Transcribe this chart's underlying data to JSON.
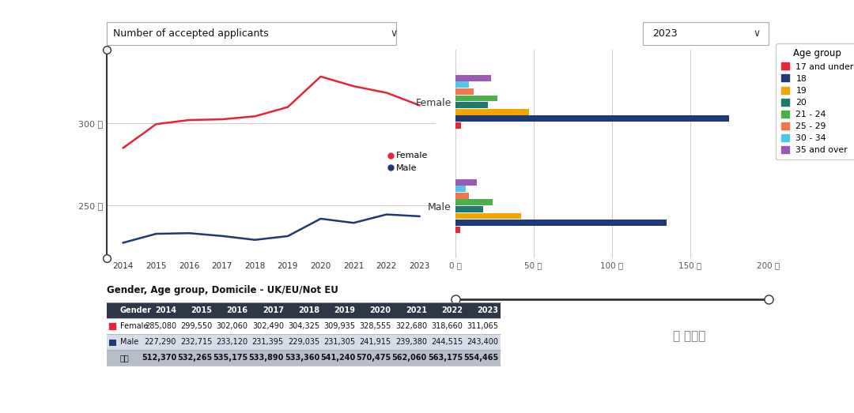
{
  "years": [
    2014,
    2015,
    2016,
    2017,
    2018,
    2019,
    2020,
    2021,
    2022,
    2023
  ],
  "female_line": [
    285080,
    299550,
    302060,
    302490,
    304325,
    309935,
    328555,
    322680,
    318660,
    311065
  ],
  "male_line": [
    227290,
    232715,
    233120,
    231395,
    229035,
    231305,
    241915,
    239380,
    244515,
    243400
  ],
  "line_female_color": "#E8233A",
  "line_male_color": "#1F3876",
  "line_chart_title": "Number of accepted applicants",
  "line_yticks": [
    250000,
    300000
  ],
  "line_ytick_labels": [
    "250 千",
    "300 千"
  ],
  "bar_female": {
    "17_under": 3500,
    "18": 175000,
    "19": 47000,
    "20": 21000,
    "21_24": 27000,
    "25_29": 12000,
    "30_34": 9000,
    "35_over": 23000
  },
  "bar_male": {
    "17_under": 3000,
    "18": 135000,
    "19": 42000,
    "20": 18000,
    "21_24": 24000,
    "25_29": 9000,
    "30_34": 7000,
    "35_over": 14000
  },
  "age_colors": {
    "17_under": "#E8233A",
    "18": "#1F3876",
    "19": "#F0A500",
    "20": "#1E7A6E",
    "21_24": "#4DAF4A",
    "25_29": "#F07850",
    "30_34": "#4FC8E8",
    "35_over": "#9B59B6"
  },
  "age_labels": {
    "17_under": "17 and under",
    "18": "18",
    "19": "19",
    "20": "20",
    "21_24": "21 - 24",
    "25_29": "25 - 29",
    "30_34": "30 - 34",
    "35_over": "35 and over"
  },
  "bar_xlim": [
    0,
    200000
  ],
  "bar_xticks": [
    0,
    50000,
    100000,
    150000,
    200000
  ],
  "bar_xtick_labels": [
    "0 千",
    "50 千",
    "100 千",
    "150 千",
    "200 千"
  ],
  "year_label": "2023",
  "table_title": "Gender, Age group, Domicile - UK/EU/Not EU",
  "table_headers": [
    "Gender",
    "2014",
    "2015",
    "2016",
    "2017",
    "2018",
    "2019",
    "2020",
    "2021",
    "2022",
    "2023"
  ],
  "table_female": [
    "Female",
    "285,080",
    "299,550",
    "302,060",
    "302,490",
    "304,325",
    "309,935",
    "328,555",
    "322,680",
    "318,660",
    "311,065"
  ],
  "table_male": [
    "Male",
    "227,290",
    "232,715",
    "233,120",
    "231,395",
    "229,035",
    "231,305",
    "241,915",
    "239,380",
    "244,515",
    "243,400"
  ],
  "table_total": [
    "总计",
    "512,370",
    "532,265",
    "535,175",
    "533,890",
    "533,360",
    "541,240",
    "570,475",
    "562,060",
    "563,175",
    "554,465"
  ],
  "bg_color": "#FFFFFF",
  "table_header_bg": "#2D3748",
  "table_female_bg": "#FFFFFF",
  "table_male_bg": "#D6DCE8",
  "table_total_bg": "#B8BEC8"
}
